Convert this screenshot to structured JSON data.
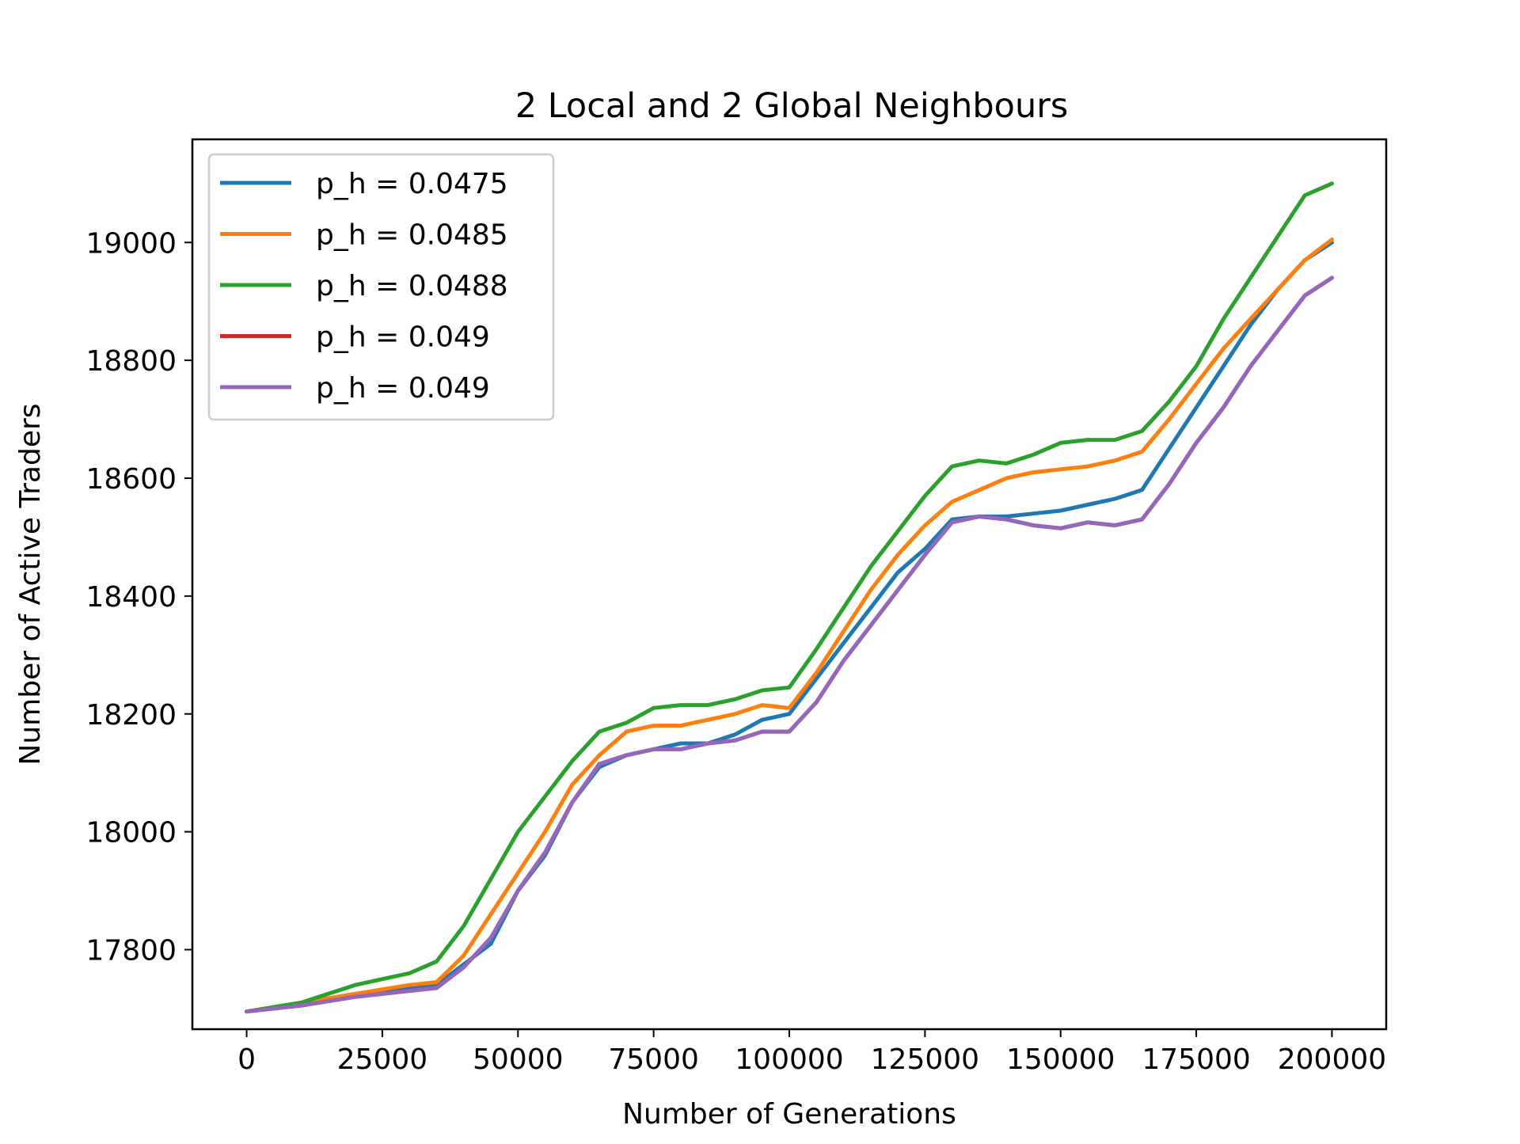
{
  "chart_data": {
    "type": "line",
    "title": "2 Local and 2 Global Neighbours",
    "xlabel": "Number of Generations",
    "ylabel": "Number of Active Traders",
    "xlim": [
      -10000,
      210000
    ],
    "ylim": [
      17665,
      19175
    ],
    "x_ticks": [
      0,
      25000,
      50000,
      75000,
      100000,
      125000,
      150000,
      175000,
      200000
    ],
    "x_tick_labels": [
      "0",
      "25000",
      "50000",
      "75000",
      "100000",
      "125000",
      "150000",
      "175000",
      "200000"
    ],
    "y_ticks": [
      17800,
      18000,
      18200,
      18400,
      18600,
      18800,
      19000
    ],
    "y_tick_labels": [
      "17800",
      "18000",
      "18200",
      "18400",
      "18600",
      "18800",
      "19000"
    ],
    "grid": false,
    "legend_position": "top-left",
    "x": [
      0,
      10000,
      20000,
      30000,
      35000,
      40000,
      45000,
      50000,
      55000,
      60000,
      65000,
      70000,
      75000,
      80000,
      85000,
      90000,
      95000,
      100000,
      105000,
      110000,
      115000,
      120000,
      125000,
      130000,
      135000,
      140000,
      145000,
      150000,
      155000,
      160000,
      165000,
      170000,
      175000,
      180000,
      185000,
      190000,
      195000,
      200000
    ],
    "series": [
      {
        "name": "p_h = 0.0475",
        "color": "#1f77b4",
        "values": [
          17695,
          17705,
          17725,
          17735,
          17740,
          17775,
          17810,
          17900,
          17960,
          18050,
          18110,
          18130,
          18140,
          18150,
          18150,
          18165,
          18190,
          18200,
          18260,
          18320,
          18380,
          18440,
          18480,
          18530,
          18535,
          18535,
          18540,
          18545,
          18555,
          18565,
          18580,
          18650,
          18720,
          18790,
          18860,
          18920,
          18970,
          19000
        ]
      },
      {
        "name": "p_h = 0.0485",
        "color": "#ff7f0e",
        "values": [
          17695,
          17710,
          17725,
          17740,
          17745,
          17790,
          17860,
          17930,
          18000,
          18080,
          18130,
          18170,
          18180,
          18180,
          18190,
          18200,
          18215,
          18210,
          18270,
          18340,
          18410,
          18470,
          18520,
          18560,
          18580,
          18600,
          18610,
          18615,
          18620,
          18630,
          18645,
          18700,
          18760,
          18820,
          18870,
          18920,
          18970,
          19005
        ]
      },
      {
        "name": "p_h = 0.0488",
        "color": "#2ca02c",
        "values": [
          17695,
          17710,
          17740,
          17760,
          17780,
          17840,
          17920,
          18000,
          18060,
          18120,
          18170,
          18185,
          18210,
          18215,
          18215,
          18225,
          18240,
          18245,
          18310,
          18380,
          18450,
          18510,
          18570,
          18620,
          18630,
          18625,
          18640,
          18660,
          18665,
          18665,
          18680,
          18730,
          18790,
          18870,
          18940,
          19010,
          19080,
          19100
        ]
      },
      {
        "name": "p_h = 0.049",
        "color": "#d62728",
        "values": [
          17695,
          17705,
          17720,
          17730,
          17735,
          17770,
          17820,
          17900,
          17965,
          18050,
          18115,
          18130,
          18140,
          18140,
          18150,
          18155,
          18170,
          18170,
          18220,
          18290,
          18350,
          18410,
          18470,
          18525,
          18535,
          18530,
          18520,
          18515,
          18525,
          18520,
          18530,
          18590,
          18660,
          18720,
          18790,
          18850,
          18910,
          18940
        ]
      },
      {
        "name": "p_h = 0.049",
        "color": "#9467bd",
        "values": [
          17695,
          17705,
          17720,
          17730,
          17735,
          17770,
          17820,
          17900,
          17965,
          18050,
          18115,
          18130,
          18140,
          18140,
          18150,
          18155,
          18170,
          18170,
          18220,
          18290,
          18350,
          18410,
          18470,
          18525,
          18535,
          18530,
          18520,
          18515,
          18525,
          18520,
          18530,
          18590,
          18660,
          18720,
          18790,
          18850,
          18910,
          18940
        ]
      }
    ]
  }
}
